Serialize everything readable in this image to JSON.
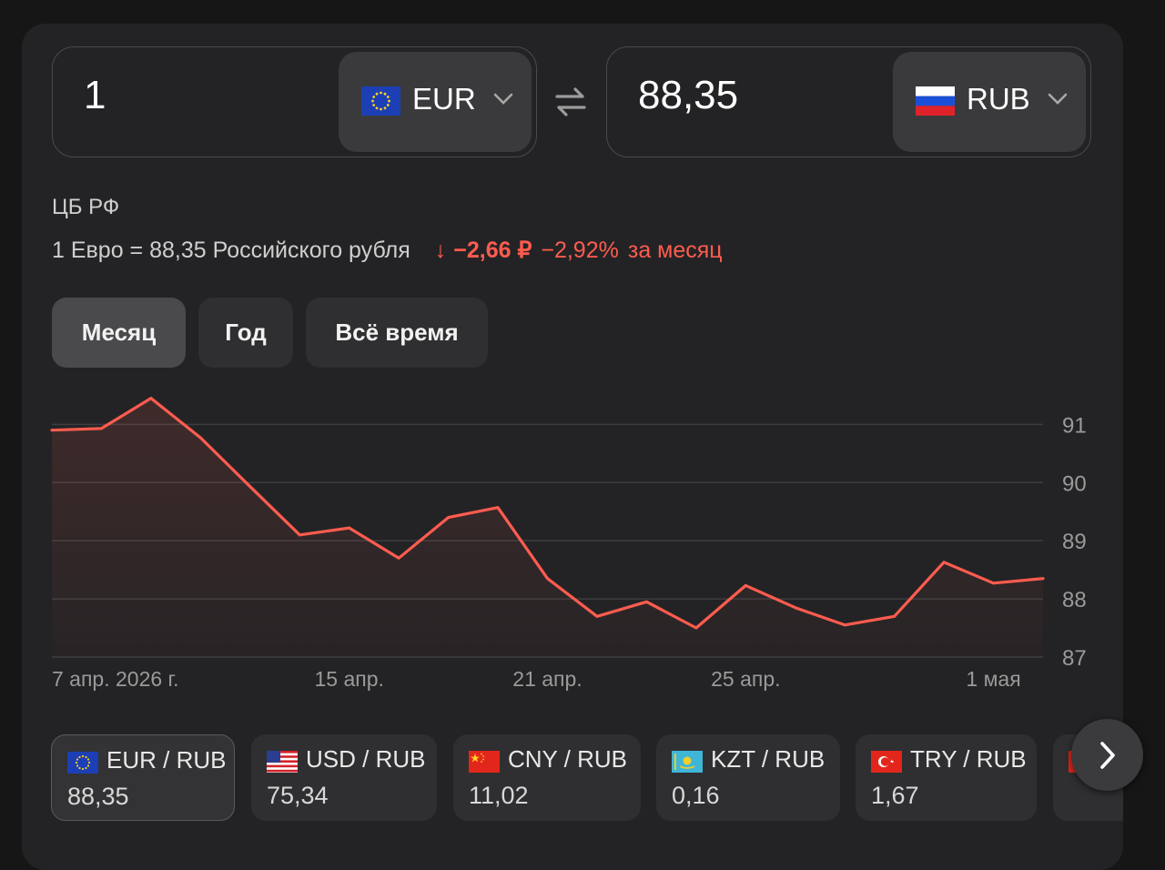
{
  "converter": {
    "from": {
      "amount": "1",
      "currency": "EUR"
    },
    "to": {
      "amount": "88,35",
      "currency": "RUB"
    }
  },
  "rate": {
    "source": "ЦБ РФ",
    "description": "1 Евро = 88,35 Российского рубля",
    "change_abs": "−2,66 ₽",
    "change_pct": "−2,92%",
    "period": "за месяц"
  },
  "tabs": [
    {
      "label": "Месяц",
      "active": true
    },
    {
      "label": "Год",
      "active": false
    },
    {
      "label": "Всё время",
      "active": false
    }
  ],
  "colors": {
    "accent_negative": "#ff5c4f",
    "background": "#161616",
    "card": "#232325"
  },
  "chart_data": {
    "type": "line",
    "x_tick_labels": [
      "7 апр. 2026 г.",
      "15 апр.",
      "21 апр.",
      "25 апр.",
      "1 мая"
    ],
    "y_ticks": [
      87,
      88,
      89,
      90,
      91
    ],
    "ylim": [
      87,
      91.6
    ],
    "grid": true,
    "series": [
      {
        "values": [
          90.9,
          90.93,
          91.45,
          90.77,
          89.93,
          89.1,
          89.22,
          88.7,
          89.4,
          89.57,
          88.35,
          87.7,
          87.95,
          87.5,
          88.23,
          87.85,
          87.55,
          87.7,
          88.63,
          88.27,
          88.35
        ]
      }
    ]
  },
  "pairs": [
    {
      "name": "EUR / RUB",
      "value": "88,35",
      "flag": "eu-flag-icon",
      "active": true
    },
    {
      "name": "USD / RUB",
      "value": "75,34",
      "flag": "us-flag-icon",
      "active": false
    },
    {
      "name": "CNY / RUB",
      "value": "11,02",
      "flag": "cn-flag-icon",
      "active": false
    },
    {
      "name": "KZT / RUB",
      "value": "0,16",
      "flag": "kz-flag-icon",
      "active": false
    },
    {
      "name": "TRY / RUB",
      "value": "1,67",
      "flag": "tr-flag-icon",
      "active": false
    }
  ]
}
